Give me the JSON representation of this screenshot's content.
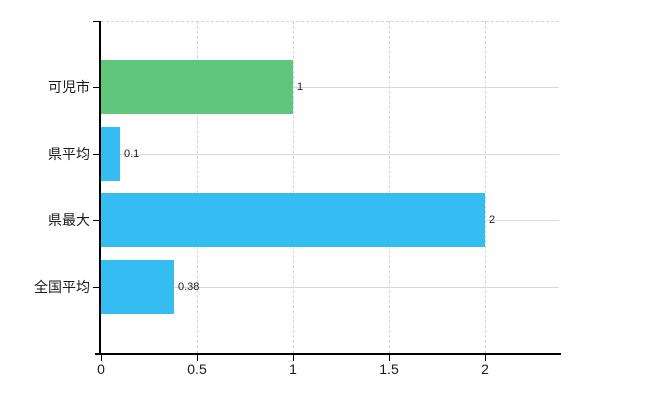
{
  "chart_data": {
    "type": "bar",
    "orientation": "horizontal",
    "title": "",
    "xlabel": "",
    "ylabel": "",
    "categories": [
      "可児市",
      "県平均",
      "県最大",
      "全国平均"
    ],
    "values": [
      1,
      0.1,
      2,
      0.38
    ],
    "value_labels": [
      "1",
      "0.1",
      "2",
      "0.38"
    ],
    "bar_colors": [
      "#61c67d",
      "#35bdf2",
      "#35bdf2",
      "#35bdf2"
    ],
    "x_tick_values": [
      0,
      0.5,
      1,
      1.5,
      2
    ],
    "x_tick_labels": [
      "0",
      "0.5",
      "1",
      "1.5",
      "2"
    ],
    "xlim": [
      0,
      2.39
    ],
    "legend": null,
    "grid": {
      "vertical_style": "dashed",
      "horizontal_style": "solid",
      "top_border_style": "dashed"
    },
    "colors": {
      "green_bar": "#61c67d",
      "blue_bar": "#35bdf2",
      "axis": "#000000",
      "solid_gridline": "#d5dad5",
      "dashed_gridline": "#d6d2db",
      "text": "#1a1a1a",
      "background": "#ffffff"
    }
  }
}
